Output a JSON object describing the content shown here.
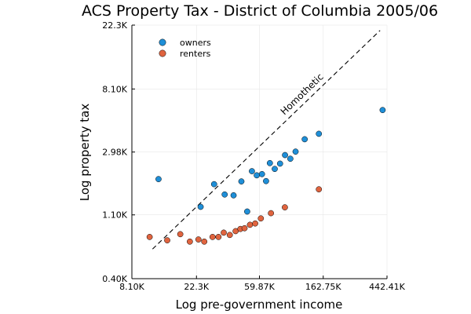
{
  "chart_data": {
    "type": "scatter",
    "title": "ACS Property Tax - District of Columbia 2005/06",
    "xlabel": "Log pre-government income",
    "ylabel": "Log property tax",
    "x_scale": "log",
    "y_scale": "log",
    "xlim": [
      8100,
      442410
    ],
    "ylim": [
      400,
      22300
    ],
    "x_ticks": [
      {
        "value": 8100,
        "label": "8.10K"
      },
      {
        "value": 22300,
        "label": "22.3K"
      },
      {
        "value": 59870,
        "label": "59.87K"
      },
      {
        "value": 162750,
        "label": "162.75K"
      },
      {
        "value": 442410,
        "label": "442.41K"
      }
    ],
    "y_ticks": [
      {
        "value": 400,
        "label": "0.40K"
      },
      {
        "value": 1100,
        "label": "1.10K"
      },
      {
        "value": 2980,
        "label": "2.98K"
      },
      {
        "value": 8100,
        "label": "8.10K"
      },
      {
        "value": 22300,
        "label": "22.3K"
      }
    ],
    "grid": true,
    "legend_position": "top-left",
    "series": [
      {
        "name": "owners",
        "color": "#1f8fd8",
        "points": [
          [
            12300,
            1940
          ],
          [
            23800,
            1250
          ],
          [
            29400,
            1790
          ],
          [
            34700,
            1520
          ],
          [
            39900,
            1500
          ],
          [
            45100,
            1870
          ],
          [
            49400,
            1160
          ],
          [
            53200,
            2200
          ],
          [
            57400,
            2060
          ],
          [
            62300,
            2100
          ],
          [
            66400,
            1880
          ],
          [
            70500,
            2500
          ],
          [
            76100,
            2280
          ],
          [
            82700,
            2480
          ],
          [
            89400,
            2840
          ],
          [
            97200,
            2680
          ],
          [
            105500,
            3000
          ],
          [
            121700,
            3650
          ],
          [
            152000,
            3980
          ],
          [
            413000,
            5800
          ]
        ]
      },
      {
        "name": "renters",
        "color": "#e0643f",
        "points": [
          [
            10700,
            775
          ],
          [
            14100,
            735
          ],
          [
            17300,
            810
          ],
          [
            20100,
            720
          ],
          [
            23000,
            745
          ],
          [
            25200,
            720
          ],
          [
            28700,
            775
          ],
          [
            31500,
            775
          ],
          [
            34200,
            830
          ],
          [
            37600,
            800
          ],
          [
            41200,
            850
          ],
          [
            44400,
            880
          ],
          [
            47400,
            890
          ],
          [
            51600,
            940
          ],
          [
            56000,
            960
          ],
          [
            61200,
            1040
          ],
          [
            71700,
            1130
          ],
          [
            89200,
            1240
          ],
          [
            152000,
            1650
          ]
        ]
      }
    ],
    "reference_line": {
      "label": "Homothetic",
      "style": "dashed",
      "color": "#000000",
      "from": [
        11200,
        640
      ],
      "to": [
        397000,
        20500
      ]
    }
  }
}
